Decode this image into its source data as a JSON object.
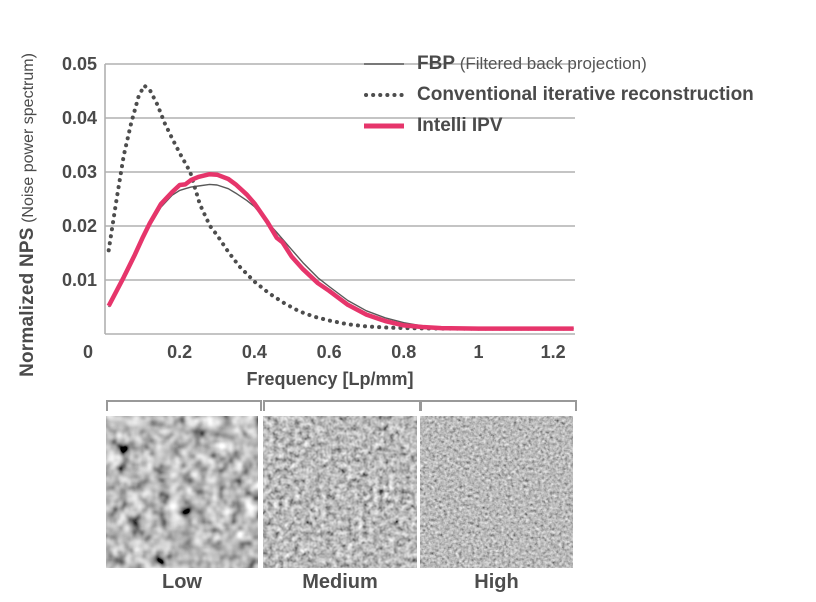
{
  "y_axis_title": {
    "main": "Normalized NPS",
    "sub": " (Noise power spectrum)"
  },
  "x_axis_label": "Frequency [Lp/mm]",
  "colors": {
    "accent_pink": "#e6356b",
    "fbp_line": "#595959",
    "dotted_line": "#4d4d4d",
    "grid": "#b0b0b0",
    "text": "#4a4a4a"
  },
  "legend": [
    {
      "label": "FBP",
      "sublabel": " (Filtered back projection)"
    },
    {
      "label": "Conventional iterative reconstruction",
      "sublabel": ""
    },
    {
      "label": "Intelli IPV",
      "sublabel": ""
    }
  ],
  "noise_panels": [
    {
      "label": "Low",
      "texture": "coarse"
    },
    {
      "label": "Medium",
      "texture": "medium"
    },
    {
      "label": "High",
      "texture": "fine"
    }
  ],
  "chart_data": {
    "type": "line",
    "title": "",
    "xlabel": "Frequency [Lp/mm]",
    "ylabel": "Normalized NPS (Noise power spectrum)",
    "xlim": [
      0,
      1.26
    ],
    "ylim": [
      0,
      0.05
    ],
    "grid": "horizontal",
    "legend_position": "top-right",
    "x_ticks": [
      0,
      0.2,
      0.4,
      0.6,
      0.8,
      1,
      1.2
    ],
    "x_tick_labels": [
      "0",
      "0.2",
      "0.4",
      "0.6",
      "0.8",
      "1",
      "1.2"
    ],
    "y_ticks": [
      0.01,
      0.02,
      0.03,
      0.04,
      0.05
    ],
    "y_tick_labels": [
      "0.01",
      "0.02",
      "0.03",
      "0.04",
      "0.05"
    ],
    "series": [
      {
        "name": "FBP (Filtered back projection)",
        "style": "thin-line",
        "color": "#595959",
        "width": 1.4,
        "x": [
          0.01,
          0.05,
          0.08,
          0.1,
          0.12,
          0.15,
          0.18,
          0.2,
          0.215,
          0.23,
          0.25,
          0.28,
          0.3,
          0.33,
          0.35,
          0.38,
          0.4,
          0.435,
          0.46,
          0.475,
          0.5,
          0.53,
          0.57,
          0.6,
          0.65,
          0.7,
          0.75,
          0.8,
          0.85,
          0.9,
          1.0,
          1.1,
          1.2,
          1.255
        ],
        "y": [
          0.005,
          0.01,
          0.0142,
          0.0172,
          0.02,
          0.0235,
          0.0257,
          0.0266,
          0.0269,
          0.0272,
          0.0274,
          0.0277,
          0.0276,
          0.0269,
          0.0261,
          0.0247,
          0.0236,
          0.0207,
          0.0188,
          0.0176,
          0.0156,
          0.0132,
          0.0104,
          0.0088,
          0.0062,
          0.0043,
          0.003,
          0.0021,
          0.0015,
          0.0012,
          0.001,
          0.001,
          0.001,
          0.001
        ]
      },
      {
        "name": "Conventional iterative reconstruction",
        "style": "dotted",
        "color": "#4d4d4d",
        "width": 4,
        "x": [
          0.01,
          0.03,
          0.05,
          0.07,
          0.09,
          0.105,
          0.12,
          0.14,
          0.16,
          0.18,
          0.2,
          0.228,
          0.254,
          0.281,
          0.3,
          0.33,
          0.36,
          0.4,
          0.44,
          0.48,
          0.52,
          0.56,
          0.6,
          0.65,
          0.7,
          0.75,
          0.8,
          0.9,
          1.0,
          1.1,
          1.2,
          1.255
        ],
        "y": [
          0.0155,
          0.0245,
          0.033,
          0.039,
          0.044,
          0.046,
          0.0452,
          0.0425,
          0.039,
          0.0362,
          0.0335,
          0.03,
          0.024,
          0.02,
          0.0183,
          0.0152,
          0.0125,
          0.0097,
          0.0075,
          0.0057,
          0.0042,
          0.0032,
          0.0025,
          0.0018,
          0.0014,
          0.0012,
          0.0011,
          0.001,
          0.001,
          0.001,
          0.001,
          0.001
        ]
      },
      {
        "name": "Intelli IPV",
        "style": "thick-line",
        "color": "#e6356b",
        "width": 4.5,
        "x": [
          0.01,
          0.05,
          0.08,
          0.1,
          0.12,
          0.15,
          0.18,
          0.2,
          0.215,
          0.23,
          0.25,
          0.28,
          0.3,
          0.33,
          0.35,
          0.38,
          0.4,
          0.435,
          0.46,
          0.475,
          0.5,
          0.53,
          0.57,
          0.6,
          0.65,
          0.7,
          0.75,
          0.8,
          0.85,
          0.9,
          1.0,
          1.1,
          1.2,
          1.255
        ],
        "y": [
          0.0052,
          0.0105,
          0.0147,
          0.0177,
          0.0205,
          0.0241,
          0.0263,
          0.0276,
          0.0277,
          0.0285,
          0.0291,
          0.0296,
          0.0295,
          0.0287,
          0.0277,
          0.0258,
          0.0242,
          0.0207,
          0.0178,
          0.017,
          0.0143,
          0.012,
          0.0094,
          0.008,
          0.0054,
          0.0036,
          0.0024,
          0.0016,
          0.0013,
          0.0011,
          0.001,
          0.001,
          0.001,
          0.001
        ]
      }
    ]
  }
}
